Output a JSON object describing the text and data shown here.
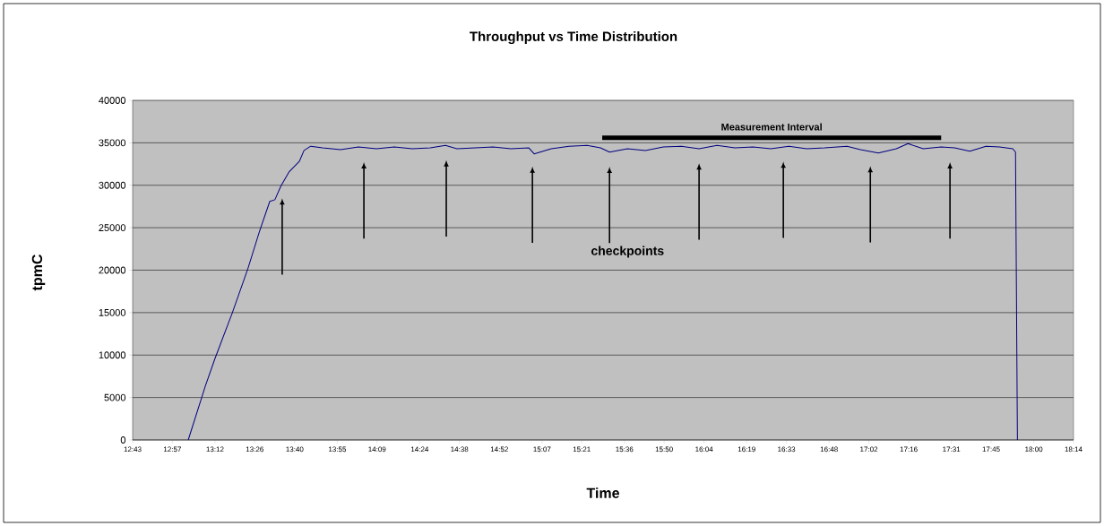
{
  "chart_data": {
    "type": "line",
    "title": "Throughput vs Time Distribution",
    "xlabel": "Time",
    "ylabel": "tpmC",
    "annotations": [
      "checkpoints"
    ],
    "x": [
      13.043,
      13.144,
      13.2,
      13.3,
      13.393,
      13.463,
      13.521,
      13.551,
      13.586,
      13.635,
      13.694,
      13.722,
      13.761,
      13.831,
      13.936,
      14.041,
      14.146,
      14.251,
      14.357,
      14.462,
      14.551,
      14.619,
      14.724,
      14.83,
      14.935,
      15.04,
      15.071,
      15.171,
      15.276,
      15.381,
      15.46,
      15.513,
      15.618,
      15.723,
      15.828,
      15.933,
      16.038,
      16.143,
      16.248,
      16.354,
      16.459,
      16.564,
      16.669,
      16.774,
      16.905,
      16.984,
      17.089,
      17.194,
      17.263,
      17.352,
      17.457,
      17.536,
      17.625,
      17.72,
      17.799,
      17.877,
      17.893,
      17.904
    ],
    "series": [
      {
        "name": "Measurement Interval",
        "color": "#000000",
        "x": [
          15.47,
          17.457
        ],
        "values": [
          35600,
          35600
        ]
      },
      {
        "color": "#000080",
        "values": [
          0,
          6400,
          9600,
          14900,
          20200,
          24700,
          28100,
          28300,
          29900,
          31600,
          32800,
          34100,
          34600,
          34400,
          34200,
          34500,
          34300,
          34500,
          34300,
          34400,
          34700,
          34300,
          34400,
          34500,
          34300,
          34400,
          33700,
          34300,
          34600,
          34700,
          34400,
          33900,
          34300,
          34100,
          34500,
          34600,
          34300,
          34700,
          34400,
          34500,
          34300,
          34600,
          34300,
          34400,
          34600,
          34200,
          33800,
          34300,
          34900,
          34300,
          34500,
          34400,
          34000,
          34600,
          34500,
          34300,
          33900,
          0
        ]
      }
    ],
    "xlim": [
      12.717,
      18.233
    ],
    "ylim": [
      0,
      40000
    ],
    "xticks": [
      {
        "value": 12.717,
        "label": "12:43"
      },
      {
        "value": 12.95,
        "label": "12:57"
      },
      {
        "value": 13.2,
        "label": "13:12"
      },
      {
        "value": 13.433,
        "label": "13:26"
      },
      {
        "value": 13.667,
        "label": "13:40"
      },
      {
        "value": 13.917,
        "label": "13:55"
      },
      {
        "value": 14.15,
        "label": "14:09"
      },
      {
        "value": 14.4,
        "label": "14:24"
      },
      {
        "value": 14.633,
        "label": "14:38"
      },
      {
        "value": 14.867,
        "label": "14:52"
      },
      {
        "value": 15.117,
        "label": "15:07"
      },
      {
        "value": 15.35,
        "label": "15:21"
      },
      {
        "value": 15.6,
        "label": "15:36"
      },
      {
        "value": 15.833,
        "label": "15:50"
      },
      {
        "value": 16.067,
        "label": "16:04"
      },
      {
        "value": 16.317,
        "label": "16:19"
      },
      {
        "value": 16.55,
        "label": "16:33"
      },
      {
        "value": 16.8,
        "label": "16:48"
      },
      {
        "value": 17.033,
        "label": "17:02"
      },
      {
        "value": 17.267,
        "label": "17:16"
      },
      {
        "value": 17.517,
        "label": "17:31"
      },
      {
        "value": 17.75,
        "label": "17:45"
      },
      {
        "value": 18.0,
        "label": "18:00"
      },
      {
        "value": 18.233,
        "label": "18:14"
      }
    ],
    "yticks": [
      0,
      5000,
      10000,
      15000,
      20000,
      25000,
      30000,
      35000,
      40000
    ],
    "grid": "y",
    "marker": "none",
    "line_style": "solid",
    "ref_lines": [
      {
        "axis": "x",
        "value": 13.594,
        "color": "#000000"
      },
      {
        "axis": "x",
        "value": 14.073,
        "color": "#000000"
      },
      {
        "axis": "x",
        "value": 14.556,
        "color": "#000000"
      },
      {
        "axis": "x",
        "value": 15.061,
        "color": "#000000"
      },
      {
        "axis": "x",
        "value": 15.513,
        "color": "#000000"
      },
      {
        "axis": "x",
        "value": 16.038,
        "color": "#000000"
      },
      {
        "axis": "x",
        "value": 16.532,
        "color": "#000000"
      },
      {
        "axis": "x",
        "value": 17.042,
        "color": "#000000"
      },
      {
        "axis": "x",
        "value": 17.509,
        "color": "#000000"
      }
    ]
  }
}
